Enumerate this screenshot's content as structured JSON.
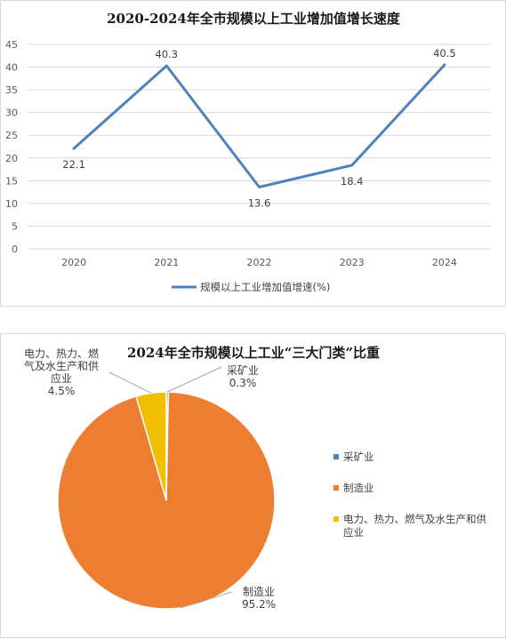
{
  "charts": {
    "line": {
      "chart_data": {
        "type": "line",
        "title": "2020-2024年全市规模以上工业增加值增长速度",
        "categories": [
          "2020",
          "2021",
          "2022",
          "2023",
          "2024"
        ],
        "series": [
          {
            "name": "规模以上工业增加值增速(%)",
            "values": [
              22.1,
              40.3,
              13.6,
              18.4,
              40.5
            ],
            "color": "#4f81bd"
          }
        ],
        "ylim": [
          0,
          45
        ],
        "yticks": [
          "0",
          "5",
          "10",
          "15",
          "20",
          "25",
          "30",
          "35",
          "40",
          "45"
        ],
        "data_labels": [
          "22.1",
          "40.3",
          "13.6",
          "18.4",
          "40.5"
        ],
        "grid": true,
        "legend": "bottom"
      }
    },
    "pie": {
      "chart_data": {
        "type": "pie",
        "title": "2024年全市规模以上工业“三大门类”比重",
        "categories": [
          "采矿业",
          "制造业",
          "电力、热力、燃气及水生产和供应业"
        ],
        "values": [
          0.3,
          95.2,
          4.5
        ],
        "value_labels": [
          "0.3%",
          "95.2%",
          "4.5%"
        ],
        "colors": [
          "#4f81bd",
          "#ed7d31",
          "#f0c000"
        ],
        "slice_labels": [
          [
            "采矿业",
            "0.3%"
          ],
          [
            "制造业",
            "95.2%"
          ],
          [
            "电力、热力、燃",
            "气及水生产和供",
            "应业",
            "4.5%"
          ]
        ],
        "legend_lines": [
          [
            "采矿业"
          ],
          [
            "制造业"
          ],
          [
            "电力、热力、燃气及水生产和供",
            "应业"
          ]
        ],
        "legend": "right"
      }
    }
  }
}
